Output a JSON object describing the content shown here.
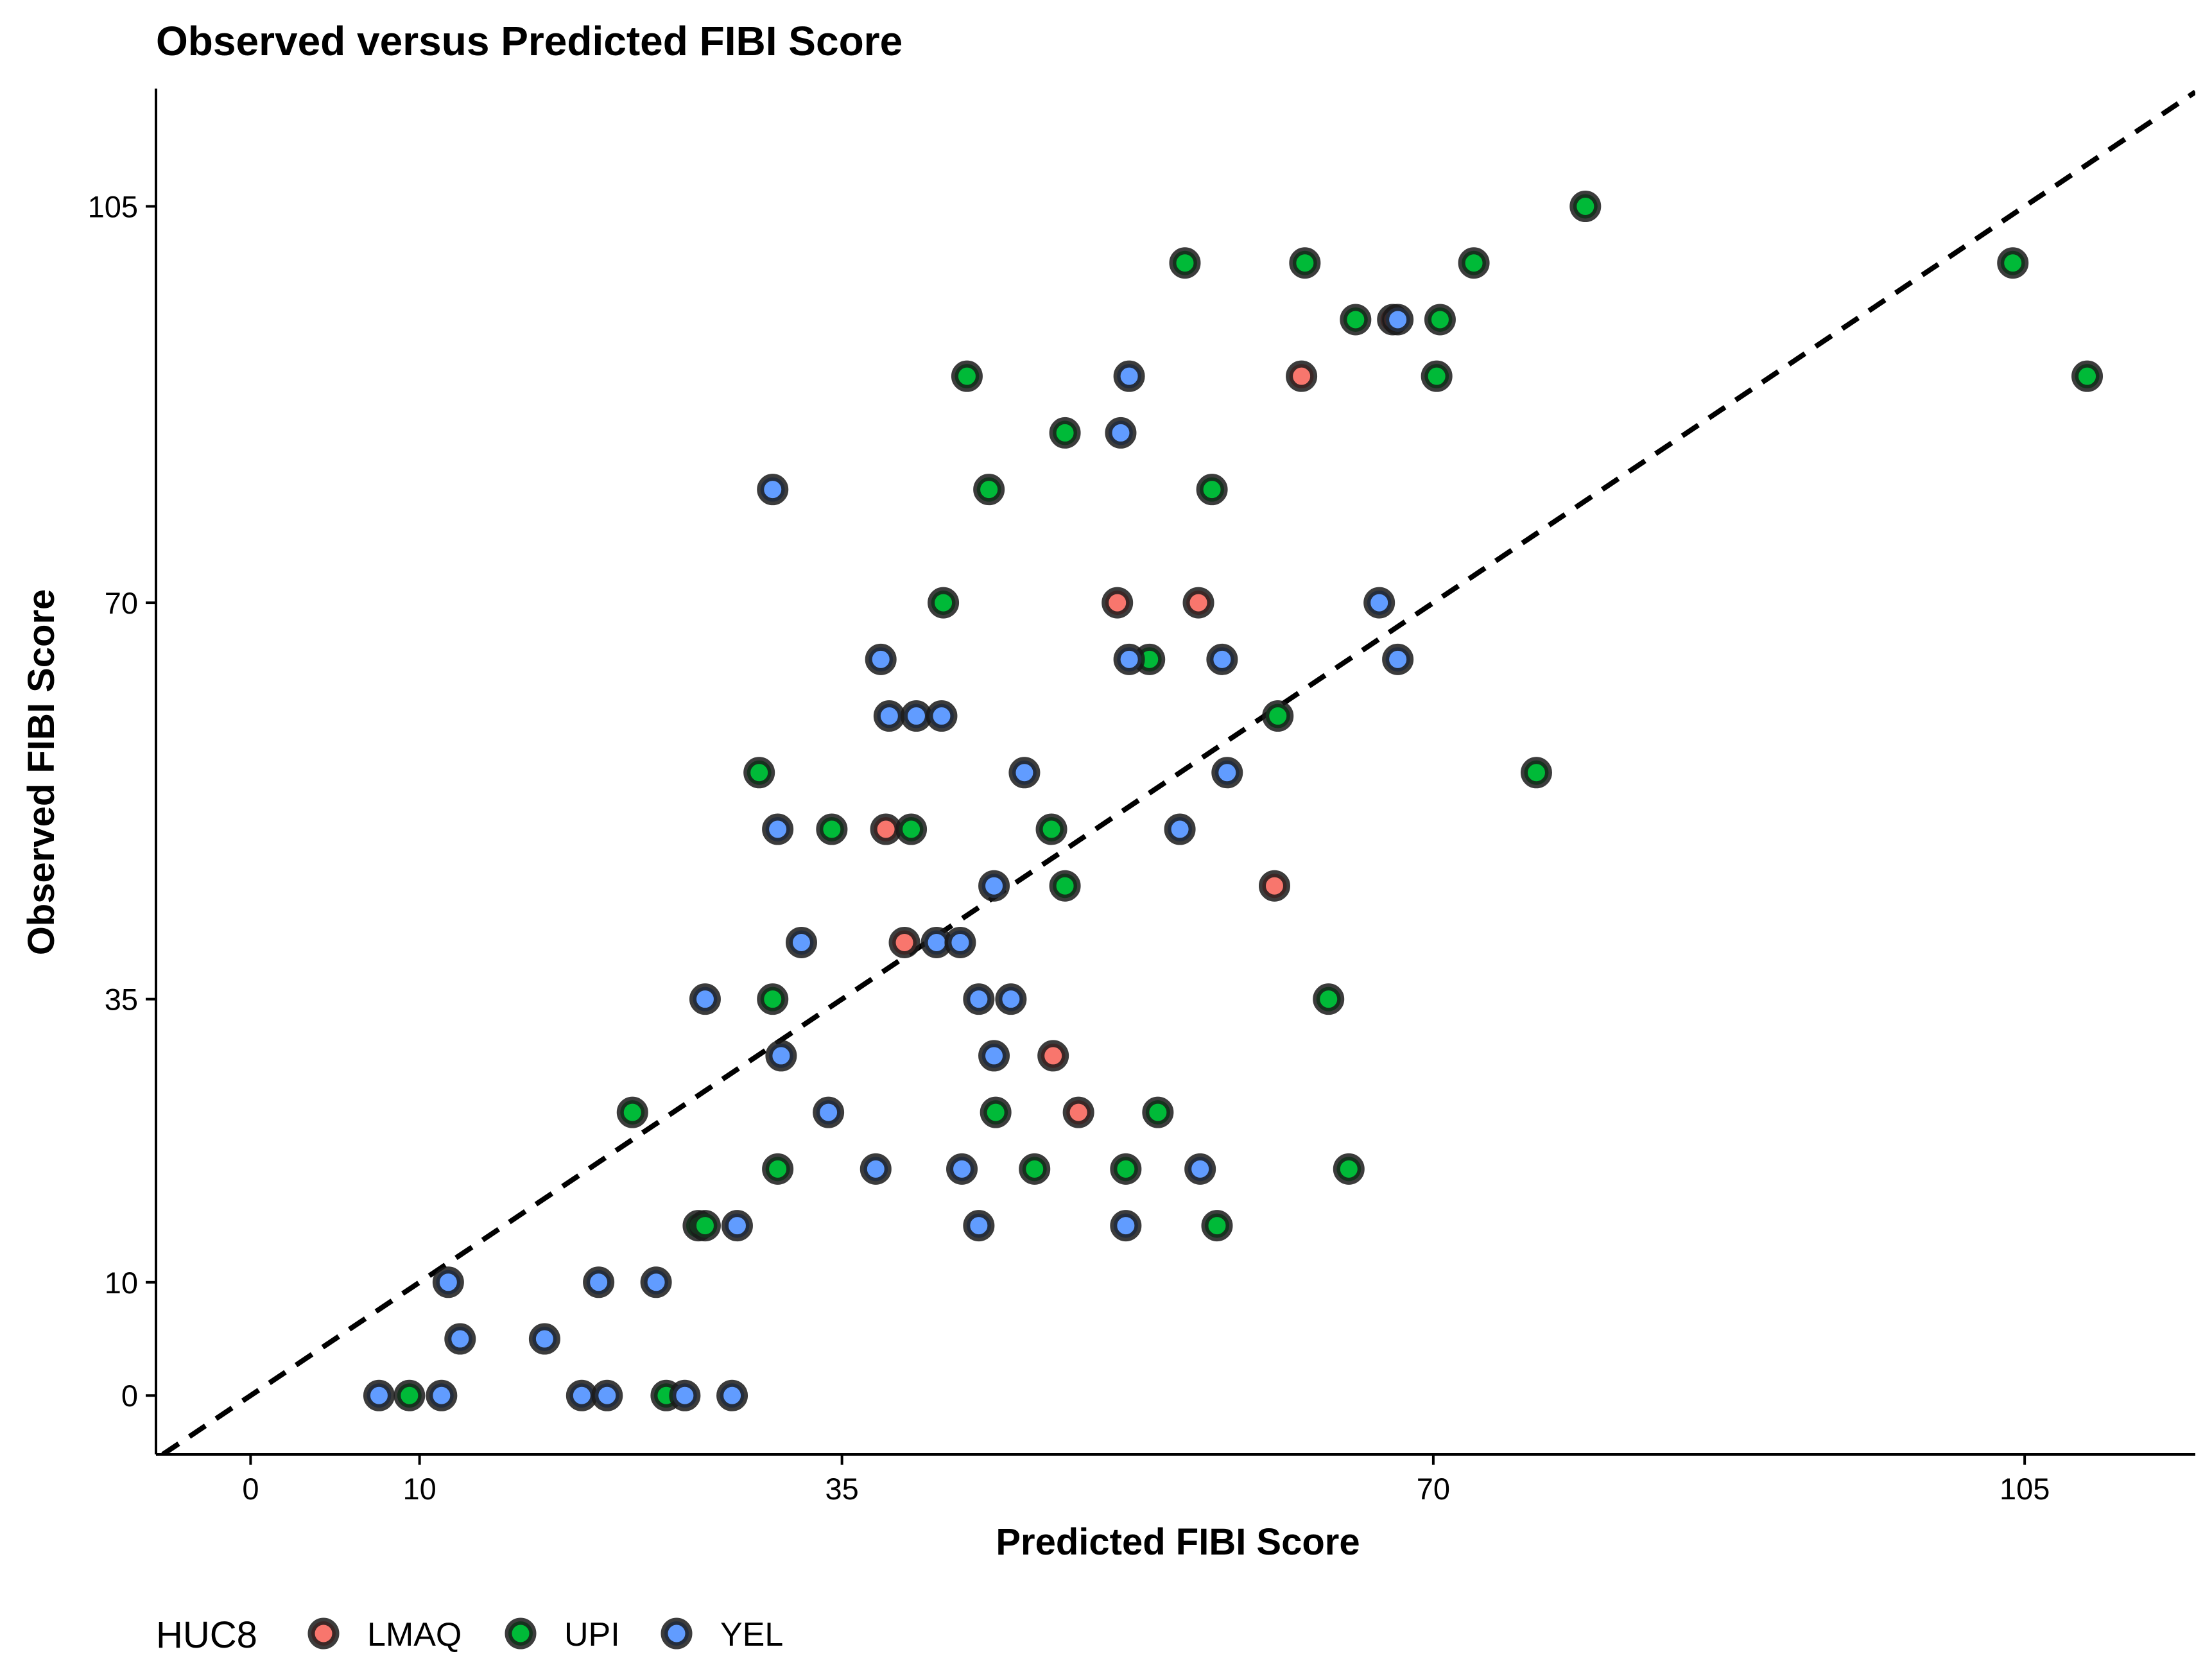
{
  "chart_data": {
    "type": "scatter",
    "title": "Observed versus Predicted FIBI Score",
    "xlabel": "Predicted FIBI Score",
    "ylabel": "Observed FIBI Score",
    "xlim": [
      -5.6,
      115.1
    ],
    "ylim": [
      -5.2,
      115.4
    ],
    "xticks": [
      0,
      10,
      35,
      70,
      105
    ],
    "yticks": [
      0,
      10,
      35,
      70,
      105
    ],
    "grid": false,
    "reference_line": {
      "type": "identity",
      "style": "dashed",
      "color": "#000000"
    },
    "legend": {
      "title": "HUC8",
      "position": "bottom-left"
    },
    "series": [
      {
        "name": "LMAQ",
        "color": "#F8766D",
        "points": [
          [
            67.6,
            95
          ],
          [
            62.2,
            90
          ],
          [
            51.3,
            70
          ],
          [
            56.1,
            70
          ],
          [
            37.6,
            50
          ],
          [
            60.6,
            45
          ],
          [
            38.7,
            40
          ],
          [
            47.5,
            30
          ],
          [
            49.0,
            25
          ]
        ]
      },
      {
        "name": "UPI",
        "color": "#00BA38",
        "points": [
          [
            79.0,
            105
          ],
          [
            55.3,
            100
          ],
          [
            62.4,
            100
          ],
          [
            72.4,
            100
          ],
          [
            104.3,
            100
          ],
          [
            65.4,
            95
          ],
          [
            70.4,
            95
          ],
          [
            42.4,
            90
          ],
          [
            70.2,
            90
          ],
          [
            108.7,
            90
          ],
          [
            48.2,
            85
          ],
          [
            43.7,
            80
          ],
          [
            56.9,
            80
          ],
          [
            41.0,
            70
          ],
          [
            53.2,
            65
          ],
          [
            60.8,
            60
          ],
          [
            30.1,
            55
          ],
          [
            76.1,
            55
          ],
          [
            34.4,
            50
          ],
          [
            39.1,
            50
          ],
          [
            47.4,
            50
          ],
          [
            48.2,
            45
          ],
          [
            30.9,
            35
          ],
          [
            63.8,
            35
          ],
          [
            22.6,
            25
          ],
          [
            44.1,
            25
          ],
          [
            53.7,
            25
          ],
          [
            31.2,
            20
          ],
          [
            46.4,
            20
          ],
          [
            51.8,
            20
          ],
          [
            65.0,
            20
          ],
          [
            26.5,
            15
          ],
          [
            26.9,
            15
          ],
          [
            57.2,
            15
          ],
          [
            9.4,
            0
          ],
          [
            24.6,
            0
          ]
        ]
      },
      {
        "name": "YEL",
        "color": "#619CFF",
        "points": [
          [
            67.9,
            95
          ],
          [
            52.0,
            90
          ],
          [
            51.5,
            85
          ],
          [
            30.9,
            80
          ],
          [
            66.8,
            70
          ],
          [
            37.3,
            65
          ],
          [
            52.0,
            65
          ],
          [
            57.5,
            65
          ],
          [
            67.9,
            65
          ],
          [
            37.8,
            60
          ],
          [
            39.4,
            60
          ],
          [
            40.9,
            60
          ],
          [
            45.8,
            55
          ],
          [
            57.8,
            55
          ],
          [
            31.2,
            50
          ],
          [
            55.0,
            50
          ],
          [
            44.0,
            45
          ],
          [
            32.6,
            40
          ],
          [
            40.6,
            40
          ],
          [
            42.0,
            40
          ],
          [
            26.9,
            35
          ],
          [
            43.1,
            35
          ],
          [
            45.0,
            35
          ],
          [
            31.4,
            30
          ],
          [
            44.0,
            30
          ],
          [
            34.2,
            25
          ],
          [
            37.0,
            20
          ],
          [
            42.1,
            20
          ],
          [
            56.2,
            20
          ],
          [
            28.8,
            15
          ],
          [
            43.1,
            15
          ],
          [
            51.8,
            15
          ],
          [
            11.7,
            10
          ],
          [
            20.6,
            10
          ],
          [
            24.0,
            10
          ],
          [
            12.4,
            5
          ],
          [
            17.4,
            5
          ],
          [
            7.6,
            0
          ],
          [
            11.3,
            0
          ],
          [
            19.6,
            0
          ],
          [
            21.1,
            0
          ],
          [
            25.7,
            0
          ],
          [
            28.5,
            0
          ]
        ]
      }
    ]
  }
}
